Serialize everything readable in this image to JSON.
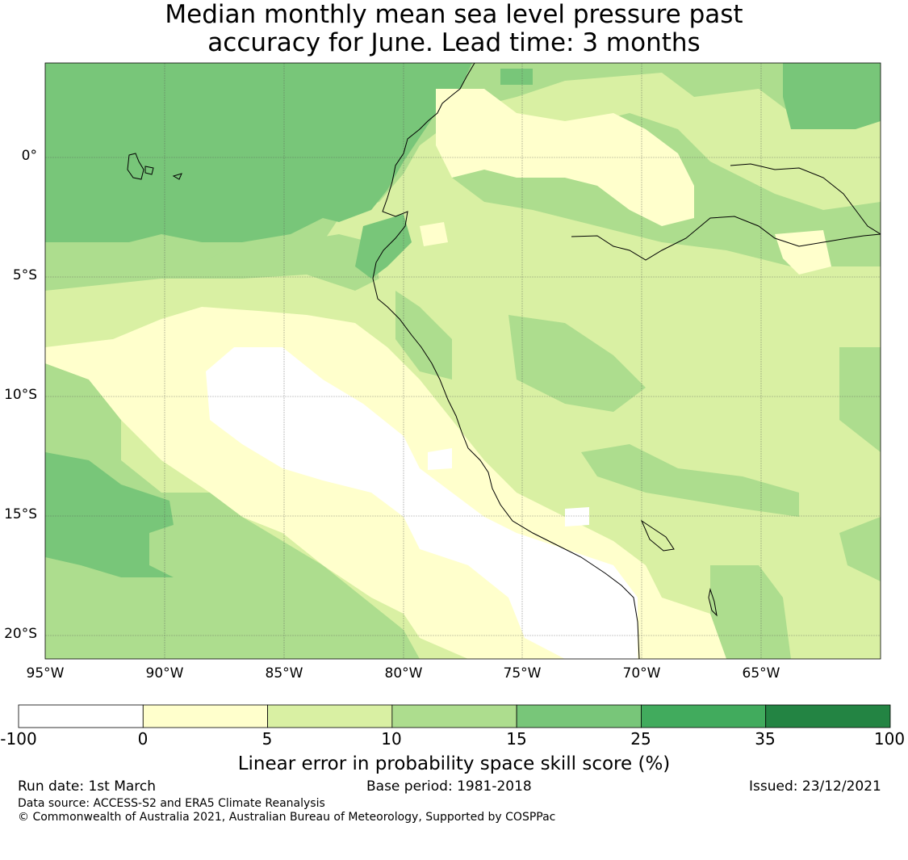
{
  "title": {
    "line1": "Median monthly mean sea level pressure past",
    "line2": "accuracy for June. Lead time: 3 months"
  },
  "map": {
    "lat_labels": [
      "0°",
      "5°S",
      "10°S",
      "15°S",
      "20°S"
    ],
    "lon_labels": [
      "95°W",
      "90°W",
      "85°W",
      "80°W",
      "75°W",
      "70°W",
      "65°W"
    ]
  },
  "colorbar": {
    "ticks": [
      "-100",
      "0",
      "5",
      "10",
      "15",
      "25",
      "35",
      "100"
    ],
    "colors": [
      "#ffffff",
      "#ffffcc",
      "#d9f0a3",
      "#addd8e",
      "#78c679",
      "#41ab5d",
      "#238443"
    ],
    "label": "Linear error in probability space skill score (%)"
  },
  "footer": {
    "run_date": "Run date: 1st March",
    "base_period": "Base period: 1981-2018",
    "issued": "Issued: 23/12/2021",
    "data_source": "Data source: ACCESS-S2 and ERA5 Climate Reanalysis",
    "copyright": "© Commonwealth of Australia 2021, Australian Bureau of Meteorology, Supported by COSPPac"
  }
}
